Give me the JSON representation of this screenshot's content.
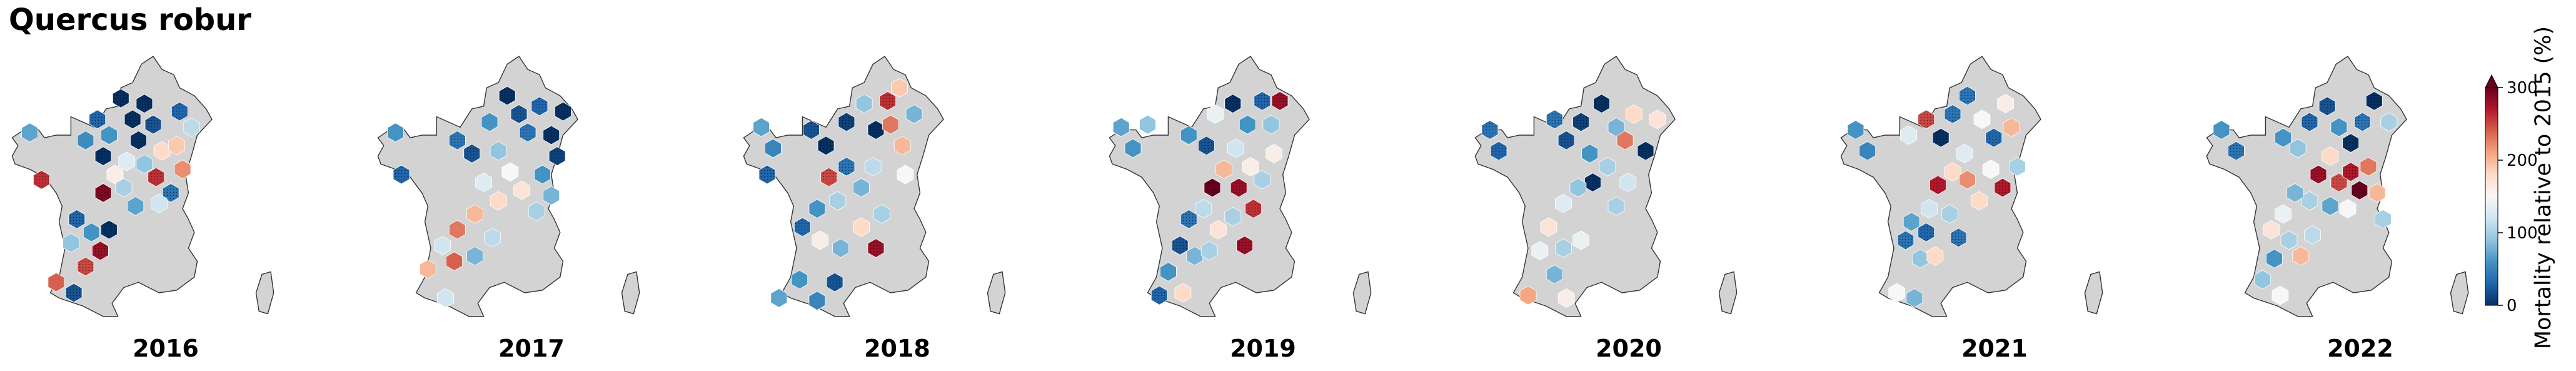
{
  "title": "Quercus robur",
  "colors": {
    "land": "#d3d3d3",
    "coast": "#333333",
    "scale": [
      "#053061",
      "#2166ac",
      "#4393c3",
      "#92c5de",
      "#d1e5f0",
      "#f7f7f7",
      "#fddbc7",
      "#f4a582",
      "#d6604d",
      "#b2182b",
      "#67001f"
    ]
  },
  "colorbar": {
    "label": "Mortality relative to 2015 (%)",
    "ticks": [
      "0",
      "100",
      "200",
      "300"
    ],
    "tick_values": [
      0,
      100,
      200,
      300
    ],
    "max": 300,
    "extend": "max"
  },
  "maps": [
    {
      "year": "2016",
      "cells": [
        [
          0.08,
          0.29,
          70
        ],
        [
          0.12,
          0.47,
          260
        ],
        [
          0.27,
          0.32,
          55
        ],
        [
          0.31,
          0.24,
          30
        ],
        [
          0.35,
          0.3,
          60
        ],
        [
          0.33,
          0.38,
          0
        ],
        [
          0.39,
          0.16,
          0
        ],
        [
          0.43,
          0.24,
          0
        ],
        [
          0.47,
          0.18,
          0
        ],
        [
          0.45,
          0.32,
          0
        ],
        [
          0.5,
          0.26,
          20
        ],
        [
          0.41,
          0.4,
          130
        ],
        [
          0.37,
          0.45,
          160
        ],
        [
          0.47,
          0.41,
          90
        ],
        [
          0.53,
          0.36,
          180
        ],
        [
          0.51,
          0.46,
          260
        ],
        [
          0.58,
          0.34,
          190
        ],
        [
          0.6,
          0.43,
          220
        ],
        [
          0.56,
          0.52,
          40
        ],
        [
          0.4,
          0.5,
          100
        ],
        [
          0.33,
          0.52,
          290
        ],
        [
          0.44,
          0.57,
          70
        ],
        [
          0.24,
          0.62,
          30
        ],
        [
          0.29,
          0.67,
          60
        ],
        [
          0.35,
          0.66,
          0
        ],
        [
          0.22,
          0.71,
          90
        ],
        [
          0.32,
          0.74,
          280
        ],
        [
          0.27,
          0.8,
          250
        ],
        [
          0.17,
          0.86,
          240
        ],
        [
          0.23,
          0.9,
          20
        ],
        [
          0.59,
          0.21,
          30
        ],
        [
          0.63,
          0.27,
          110
        ],
        [
          0.52,
          0.56,
          120
        ]
      ]
    },
    {
      "year": "2017",
      "cells": [
        [
          0.08,
          0.29,
          60
        ],
        [
          0.1,
          0.45,
          30
        ],
        [
          0.29,
          0.32,
          40
        ],
        [
          0.34,
          0.37,
          20
        ],
        [
          0.4,
          0.25,
          60
        ],
        [
          0.43,
          0.36,
          90
        ],
        [
          0.46,
          0.15,
          0
        ],
        [
          0.5,
          0.22,
          20
        ],
        [
          0.53,
          0.29,
          40
        ],
        [
          0.57,
          0.19,
          30
        ],
        [
          0.61,
          0.3,
          0
        ],
        [
          0.63,
          0.38,
          10
        ],
        [
          0.58,
          0.45,
          60
        ],
        [
          0.61,
          0.53,
          80
        ],
        [
          0.47,
          0.44,
          150
        ],
        [
          0.51,
          0.51,
          170
        ],
        [
          0.43,
          0.55,
          180
        ],
        [
          0.38,
          0.48,
          130
        ],
        [
          0.35,
          0.6,
          200
        ],
        [
          0.29,
          0.66,
          230
        ],
        [
          0.24,
          0.72,
          120
        ],
        [
          0.28,
          0.78,
          240
        ],
        [
          0.35,
          0.76,
          80
        ],
        [
          0.41,
          0.69,
          110
        ],
        [
          0.19,
          0.81,
          200
        ],
        [
          0.25,
          0.92,
          120
        ],
        [
          0.65,
          0.21,
          0
        ],
        [
          0.56,
          0.59,
          100
        ]
      ]
    },
    {
      "year": "2018",
      "cells": [
        [
          0.08,
          0.27,
          70
        ],
        [
          0.12,
          0.35,
          50
        ],
        [
          0.1,
          0.45,
          30
        ],
        [
          0.25,
          0.28,
          20
        ],
        [
          0.3,
          0.34,
          0
        ],
        [
          0.37,
          0.25,
          10
        ],
        [
          0.43,
          0.18,
          90
        ],
        [
          0.47,
          0.28,
          0
        ],
        [
          0.51,
          0.17,
          260
        ],
        [
          0.52,
          0.26,
          230
        ],
        [
          0.56,
          0.34,
          200
        ],
        [
          0.55,
          0.12,
          190
        ],
        [
          0.6,
          0.22,
          80
        ],
        [
          0.46,
          0.42,
          110
        ],
        [
          0.42,
          0.5,
          80
        ],
        [
          0.37,
          0.42,
          40
        ],
        [
          0.31,
          0.46,
          250
        ],
        [
          0.34,
          0.55,
          100
        ],
        [
          0.27,
          0.58,
          60
        ],
        [
          0.22,
          0.65,
          30
        ],
        [
          0.28,
          0.7,
          160
        ],
        [
          0.35,
          0.73,
          80
        ],
        [
          0.42,
          0.65,
          180
        ],
        [
          0.47,
          0.73,
          280
        ],
        [
          0.49,
          0.6,
          100
        ],
        [
          0.21,
          0.85,
          60
        ],
        [
          0.14,
          0.92,
          70
        ],
        [
          0.27,
          0.93,
          50
        ],
        [
          0.33,
          0.86,
          20
        ],
        [
          0.57,
          0.45,
          150
        ]
      ]
    },
    {
      "year": "2019",
      "cells": [
        [
          0.06,
          0.27,
          70
        ],
        [
          0.1,
          0.35,
          60
        ],
        [
          0.15,
          0.26,
          90
        ],
        [
          0.29,
          0.3,
          60
        ],
        [
          0.35,
          0.34,
          20
        ],
        [
          0.38,
          0.22,
          140
        ],
        [
          0.44,
          0.18,
          0
        ],
        [
          0.49,
          0.26,
          60
        ],
        [
          0.54,
          0.17,
          30
        ],
        [
          0.57,
          0.26,
          90
        ],
        [
          0.6,
          0.17,
          280
        ],
        [
          0.45,
          0.35,
          120
        ],
        [
          0.41,
          0.43,
          200
        ],
        [
          0.37,
          0.5,
          300
        ],
        [
          0.46,
          0.5,
          280
        ],
        [
          0.5,
          0.42,
          160
        ],
        [
          0.54,
          0.47,
          100
        ],
        [
          0.51,
          0.58,
          260
        ],
        [
          0.44,
          0.61,
          100
        ],
        [
          0.39,
          0.66,
          170
        ],
        [
          0.34,
          0.58,
          110
        ],
        [
          0.29,
          0.62,
          40
        ],
        [
          0.26,
          0.72,
          20
        ],
        [
          0.31,
          0.76,
          80
        ],
        [
          0.36,
          0.74,
          100
        ],
        [
          0.22,
          0.82,
          60
        ],
        [
          0.27,
          0.9,
          180
        ],
        [
          0.19,
          0.91,
          30
        ],
        [
          0.48,
          0.72,
          280
        ],
        [
          0.58,
          0.37,
          160
        ]
      ]
    },
    {
      "year": "2020",
      "cells": [
        [
          0.07,
          0.28,
          40
        ],
        [
          0.1,
          0.36,
          30
        ],
        [
          0.29,
          0.24,
          40
        ],
        [
          0.33,
          0.32,
          20
        ],
        [
          0.38,
          0.25,
          10
        ],
        [
          0.41,
          0.37,
          60
        ],
        [
          0.45,
          0.18,
          0
        ],
        [
          0.5,
          0.27,
          80
        ],
        [
          0.53,
          0.32,
          230
        ],
        [
          0.56,
          0.22,
          180
        ],
        [
          0.6,
          0.36,
          0
        ],
        [
          0.64,
          0.24,
          170
        ],
        [
          0.47,
          0.42,
          100
        ],
        [
          0.42,
          0.48,
          0
        ],
        [
          0.37,
          0.5,
          90
        ],
        [
          0.32,
          0.56,
          130
        ],
        [
          0.27,
          0.65,
          170
        ],
        [
          0.24,
          0.74,
          140
        ],
        [
          0.32,
          0.73,
          100
        ],
        [
          0.38,
          0.7,
          140
        ],
        [
          0.29,
          0.83,
          80
        ],
        [
          0.33,
          0.92,
          160
        ],
        [
          0.2,
          0.91,
          210
        ],
        [
          0.54,
          0.48,
          120
        ],
        [
          0.5,
          0.57,
          100
        ]
      ]
    },
    {
      "year": "2021",
      "cells": [
        [
          0.07,
          0.28,
          60
        ],
        [
          0.11,
          0.36,
          50
        ],
        [
          0.25,
          0.3,
          130
        ],
        [
          0.31,
          0.24,
          250
        ],
        [
          0.36,
          0.31,
          0
        ],
        [
          0.4,
          0.22,
          40
        ],
        [
          0.45,
          0.15,
          40
        ],
        [
          0.5,
          0.24,
          150
        ],
        [
          0.54,
          0.31,
          30
        ],
        [
          0.58,
          0.18,
          160
        ],
        [
          0.6,
          0.27,
          200
        ],
        [
          0.44,
          0.37,
          130
        ],
        [
          0.4,
          0.44,
          180
        ],
        [
          0.35,
          0.49,
          270
        ],
        [
          0.45,
          0.47,
          220
        ],
        [
          0.49,
          0.55,
          180
        ],
        [
          0.53,
          0.43,
          150
        ],
        [
          0.57,
          0.5,
          270
        ],
        [
          0.32,
          0.58,
          120
        ],
        [
          0.26,
          0.63,
          70
        ],
        [
          0.31,
          0.67,
          30
        ],
        [
          0.24,
          0.7,
          40
        ],
        [
          0.29,
          0.77,
          90
        ],
        [
          0.34,
          0.76,
          180
        ],
        [
          0.42,
          0.69,
          40
        ],
        [
          0.39,
          0.6,
          100
        ],
        [
          0.21,
          0.9,
          150
        ],
        [
          0.27,
          0.92,
          80
        ],
        [
          0.62,
          0.42,
          100
        ]
      ]
    },
    {
      "year": "2022",
      "cells": [
        [
          0.07,
          0.28,
          60
        ],
        [
          0.12,
          0.36,
          40
        ],
        [
          0.28,
          0.31,
          60
        ],
        [
          0.33,
          0.35,
          90
        ],
        [
          0.37,
          0.25,
          30
        ],
        [
          0.43,
          0.19,
          20
        ],
        [
          0.47,
          0.27,
          60
        ],
        [
          0.51,
          0.33,
          0
        ],
        [
          0.55,
          0.25,
          40
        ],
        [
          0.59,
          0.17,
          0
        ],
        [
          0.64,
          0.25,
          100
        ],
        [
          0.44,
          0.38,
          180
        ],
        [
          0.4,
          0.45,
          280
        ],
        [
          0.47,
          0.48,
          250
        ],
        [
          0.51,
          0.44,
          270
        ],
        [
          0.54,
          0.51,
          300
        ],
        [
          0.57,
          0.42,
          230
        ],
        [
          0.6,
          0.52,
          200
        ],
        [
          0.5,
          0.58,
          150
        ],
        [
          0.44,
          0.57,
          70
        ],
        [
          0.37,
          0.55,
          100
        ],
        [
          0.32,
          0.52,
          80
        ],
        [
          0.28,
          0.6,
          140
        ],
        [
          0.24,
          0.66,
          170
        ],
        [
          0.3,
          0.7,
          100
        ],
        [
          0.38,
          0.68,
          110
        ],
        [
          0.34,
          0.76,
          200
        ],
        [
          0.25,
          0.77,
          60
        ],
        [
          0.21,
          0.85,
          90
        ],
        [
          0.27,
          0.91,
          150
        ],
        [
          0.62,
          0.62,
          100
        ]
      ]
    }
  ]
}
